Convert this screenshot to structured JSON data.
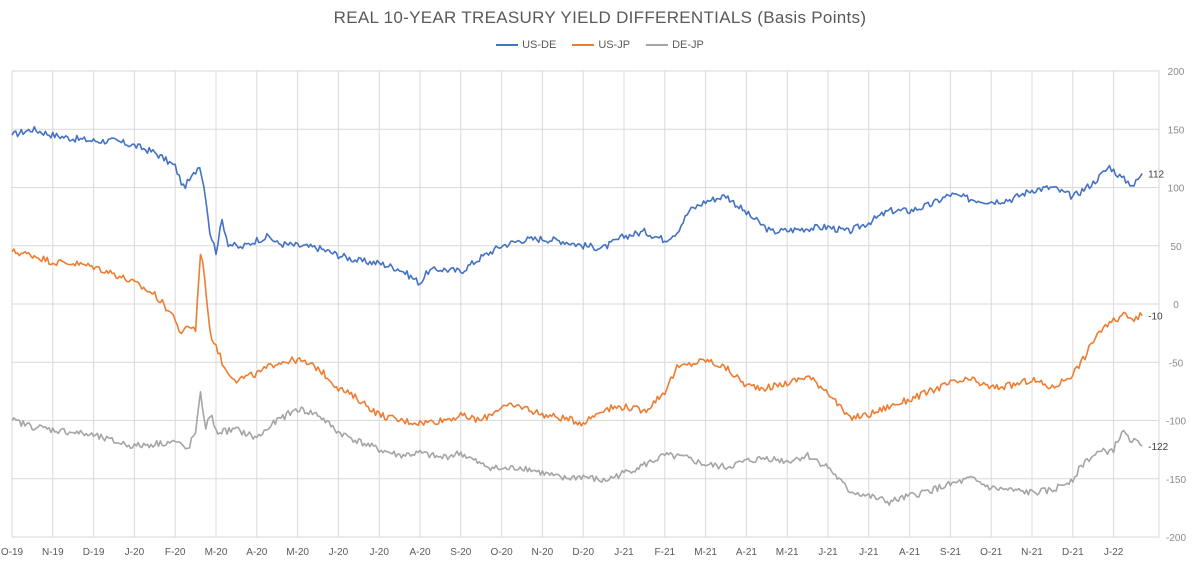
{
  "chart_data": {
    "type": "line",
    "title": "REAL 10-YEAR TREASURY YIELD DIFFERENTIALS (Basis Points)",
    "xlabel": "",
    "ylabel": "",
    "ylim": [
      -200,
      200
    ],
    "yticks": [
      200,
      150,
      100,
      50,
      0,
      -50,
      -100,
      -150,
      -200
    ],
    "grid": true,
    "legend": "top-center",
    "x_tick_labels": [
      "O-19",
      "N-19",
      "D-19",
      "J-20",
      "F-20",
      "M-20",
      "A-20",
      "M-20",
      "J-20",
      "J-20",
      "A-20",
      "S-20",
      "O-20",
      "N-20",
      "D-20",
      "J-21",
      "F-21",
      "M-21",
      "A-21",
      "M-21",
      "J-21",
      "J-21",
      "A-21",
      "S-21",
      "O-21",
      "N-21",
      "D-21",
      "J-22"
    ],
    "x_tick_months": [
      0,
      1,
      2,
      3,
      4,
      5,
      6,
      7,
      8,
      9,
      10,
      11,
      12,
      13,
      14,
      15,
      16,
      17,
      18,
      19,
      20,
      21,
      22,
      23,
      24,
      25,
      26,
      27
    ],
    "x_range_months": [
      0,
      27.7
    ],
    "series": [
      {
        "name": "US-DE",
        "color": "#4472C4",
        "end_label": "112",
        "points": [
          [
            0,
            145
          ],
          [
            0.5,
            150
          ],
          [
            1,
            145
          ],
          [
            1.5,
            142
          ],
          [
            2,
            140
          ],
          [
            2.5,
            140
          ],
          [
            3,
            136
          ],
          [
            3.5,
            130
          ],
          [
            4,
            118
          ],
          [
            4.2,
            100
          ],
          [
            4.4,
            108
          ],
          [
            4.6,
            120
          ],
          [
            4.75,
            92
          ],
          [
            4.85,
            62
          ],
          [
            5,
            45
          ],
          [
            5.15,
            72
          ],
          [
            5.3,
            52
          ],
          [
            5.6,
            48
          ],
          [
            6,
            55
          ],
          [
            6.3,
            58
          ],
          [
            6.5,
            52
          ],
          [
            7,
            50
          ],
          [
            7.5,
            48
          ],
          [
            8,
            42
          ],
          [
            8.5,
            37
          ],
          [
            9,
            35
          ],
          [
            9.5,
            30
          ],
          [
            10,
            18
          ],
          [
            10.2,
            28
          ],
          [
            10.5,
            30
          ],
          [
            11,
            28
          ],
          [
            11.5,
            40
          ],
          [
            12,
            50
          ],
          [
            12.5,
            55
          ],
          [
            13,
            56
          ],
          [
            13.5,
            54
          ],
          [
            14,
            50
          ],
          [
            14.5,
            48
          ],
          [
            15,
            58
          ],
          [
            15.5,
            62
          ],
          [
            16,
            55
          ],
          [
            16.3,
            62
          ],
          [
            16.6,
            80
          ],
          [
            17,
            88
          ],
          [
            17.5,
            93
          ],
          [
            18,
            78
          ],
          [
            18.3,
            70
          ],
          [
            18.6,
            62
          ],
          [
            19,
            63
          ],
          [
            19.5,
            65
          ],
          [
            20,
            66
          ],
          [
            20.5,
            62
          ],
          [
            21,
            70
          ],
          [
            21.5,
            80
          ],
          [
            22,
            80
          ],
          [
            22.5,
            85
          ],
          [
            23,
            94
          ],
          [
            23.5,
            90
          ],
          [
            24,
            88
          ],
          [
            24.5,
            90
          ],
          [
            25,
            98
          ],
          [
            25.5,
            100
          ],
          [
            26,
            92
          ],
          [
            26.5,
            104
          ],
          [
            26.9,
            118
          ],
          [
            27.2,
            108
          ],
          [
            27.5,
            102
          ],
          [
            27.7,
            112
          ]
        ]
      },
      {
        "name": "US-JP",
        "color": "#ED7D31",
        "end_label": "-10",
        "points": [
          [
            0,
            45
          ],
          [
            0.5,
            42
          ],
          [
            1,
            36
          ],
          [
            1.5,
            35
          ],
          [
            2,
            32
          ],
          [
            2.5,
            26
          ],
          [
            3,
            18
          ],
          [
            3.5,
            8
          ],
          [
            4,
            -12
          ],
          [
            4.15,
            -28
          ],
          [
            4.3,
            -18
          ],
          [
            4.5,
            -22
          ],
          [
            4.62,
            45
          ],
          [
            4.72,
            25
          ],
          [
            4.85,
            -25
          ],
          [
            5,
            -35
          ],
          [
            5.2,
            -55
          ],
          [
            5.5,
            -65
          ],
          [
            6,
            -60
          ],
          [
            6.5,
            -50
          ],
          [
            7,
            -48
          ],
          [
            7.5,
            -55
          ],
          [
            8,
            -72
          ],
          [
            8.5,
            -82
          ],
          [
            9,
            -95
          ],
          [
            9.5,
            -100
          ],
          [
            10,
            -102
          ],
          [
            10.5,
            -100
          ],
          [
            11,
            -96
          ],
          [
            11.5,
            -100
          ],
          [
            12,
            -88
          ],
          [
            12.5,
            -88
          ],
          [
            13,
            -95
          ],
          [
            13.5,
            -98
          ],
          [
            14,
            -102
          ],
          [
            14.5,
            -90
          ],
          [
            15,
            -88
          ],
          [
            15.5,
            -92
          ],
          [
            16,
            -75
          ],
          [
            16.3,
            -55
          ],
          [
            16.6,
            -52
          ],
          [
            17,
            -48
          ],
          [
            17.5,
            -55
          ],
          [
            18,
            -70
          ],
          [
            18.5,
            -72
          ],
          [
            19,
            -68
          ],
          [
            19.5,
            -62
          ],
          [
            20,
            -75
          ],
          [
            20.5,
            -98
          ],
          [
            21,
            -95
          ],
          [
            21.5,
            -88
          ],
          [
            22,
            -82
          ],
          [
            22.5,
            -75
          ],
          [
            23,
            -68
          ],
          [
            23.5,
            -65
          ],
          [
            24,
            -72
          ],
          [
            24.5,
            -70
          ],
          [
            25,
            -65
          ],
          [
            25.5,
            -72
          ],
          [
            26,
            -60
          ],
          [
            26.3,
            -45
          ],
          [
            26.6,
            -25
          ],
          [
            27,
            -15
          ],
          [
            27.3,
            -8
          ],
          [
            27.5,
            -12
          ],
          [
            27.7,
            -10
          ]
        ]
      },
      {
        "name": "DE-JP",
        "color": "#A5A5A5",
        "end_label": "-122",
        "points": [
          [
            0,
            -100
          ],
          [
            0.5,
            -105
          ],
          [
            1,
            -108
          ],
          [
            1.5,
            -110
          ],
          [
            2,
            -113
          ],
          [
            2.5,
            -118
          ],
          [
            3,
            -122
          ],
          [
            3.5,
            -120
          ],
          [
            4,
            -118
          ],
          [
            4.3,
            -125
          ],
          [
            4.5,
            -110
          ],
          [
            4.62,
            -78
          ],
          [
            4.75,
            -105
          ],
          [
            4.9,
            -95
          ],
          [
            5,
            -110
          ],
          [
            5.5,
            -108
          ],
          [
            6,
            -115
          ],
          [
            6.5,
            -100
          ],
          [
            7,
            -90
          ],
          [
            7.5,
            -95
          ],
          [
            8,
            -110
          ],
          [
            8.5,
            -118
          ],
          [
            9,
            -125
          ],
          [
            9.5,
            -130
          ],
          [
            10,
            -128
          ],
          [
            10.5,
            -132
          ],
          [
            11,
            -128
          ],
          [
            11.5,
            -138
          ],
          [
            12,
            -142
          ],
          [
            12.5,
            -140
          ],
          [
            13,
            -145
          ],
          [
            13.5,
            -150
          ],
          [
            14,
            -148
          ],
          [
            14.5,
            -152
          ],
          [
            15,
            -145
          ],
          [
            15.5,
            -138
          ],
          [
            16,
            -130
          ],
          [
            16.5,
            -132
          ],
          [
            17,
            -138
          ],
          [
            17.5,
            -140
          ],
          [
            18,
            -135
          ],
          [
            18.5,
            -132
          ],
          [
            19,
            -135
          ],
          [
            19.5,
            -130
          ],
          [
            20,
            -140
          ],
          [
            20.5,
            -160
          ],
          [
            21,
            -165
          ],
          [
            21.5,
            -170
          ],
          [
            22,
            -165
          ],
          [
            22.5,
            -160
          ],
          [
            23,
            -155
          ],
          [
            23.5,
            -150
          ],
          [
            24,
            -158
          ],
          [
            24.5,
            -160
          ],
          [
            25,
            -162
          ],
          [
            25.5,
            -160
          ],
          [
            26,
            -150
          ],
          [
            26.3,
            -135
          ],
          [
            26.6,
            -128
          ],
          [
            27,
            -125
          ],
          [
            27.2,
            -110
          ],
          [
            27.5,
            -118
          ],
          [
            27.7,
            -122
          ]
        ]
      }
    ]
  }
}
